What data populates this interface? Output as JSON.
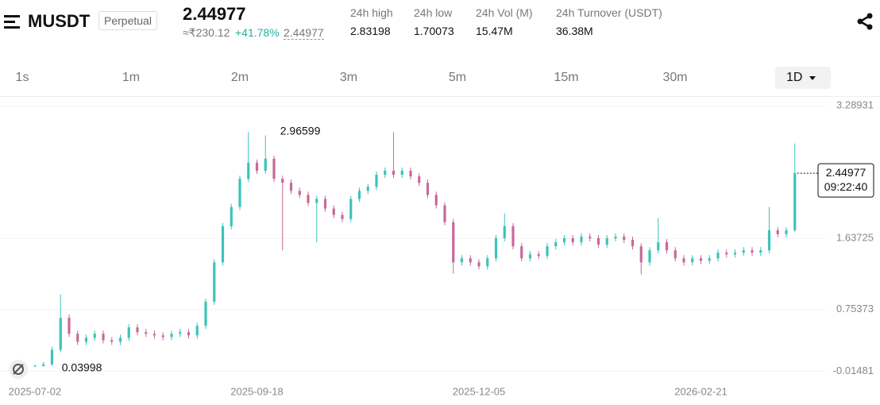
{
  "header": {
    "symbol": "MUSDT",
    "contract": "Perpetual",
    "price": "2.44977",
    "fiat_price": "≈₹230.12",
    "change": "+41.78%",
    "mark_price": "2.44977",
    "stats": [
      {
        "label": "24h high",
        "value": "2.83198"
      },
      {
        "label": "24h low",
        "value": "1.70073"
      },
      {
        "label": "24h Vol (M)",
        "value": "15.47M"
      },
      {
        "label": "24h Turnover (USDT)",
        "value": "36.38M"
      }
    ]
  },
  "intervals": {
    "options": [
      "1s",
      "1m",
      "2m",
      "3m",
      "5m",
      "15m",
      "30m",
      "1D"
    ],
    "selected_index": 7
  },
  "chart_data": {
    "type": "candlestick",
    "categories": [
      "2025-07-02",
      null,
      null,
      null,
      null,
      null,
      null,
      null,
      null,
      null,
      null,
      null,
      null,
      null,
      null,
      null,
      null,
      null,
      null,
      null,
      null,
      null,
      null,
      null,
      null,
      null,
      "2025-09-18",
      null,
      null,
      null,
      null,
      null,
      null,
      null,
      null,
      null,
      null,
      null,
      null,
      null,
      null,
      null,
      null,
      null,
      null,
      null,
      null,
      null,
      null,
      null,
      null,
      null,
      "2025-12-05",
      null,
      null,
      null,
      null,
      null,
      null,
      null,
      null,
      null,
      null,
      null,
      null,
      null,
      null,
      null,
      null,
      null,
      null,
      null,
      null,
      null,
      null,
      null,
      null,
      null,
      "2026-02-21",
      null,
      null,
      null,
      null,
      null,
      null,
      null,
      null,
      null,
      null,
      null
    ],
    "open": [
      0.04,
      0.05,
      0.07,
      0.25,
      0.65,
      0.45,
      0.35,
      0.4,
      0.45,
      0.37,
      0.35,
      0.4,
      0.53,
      0.47,
      0.45,
      0.43,
      0.41,
      0.45,
      0.47,
      0.43,
      0.55,
      0.85,
      1.34,
      1.79,
      2.03,
      2.38,
      2.58,
      2.48,
      2.63,
      2.38,
      2.33,
      2.23,
      2.18,
      2.08,
      2.13,
      2.01,
      1.93,
      1.88,
      2.13,
      2.23,
      2.28,
      2.43,
      2.48,
      2.43,
      2.48,
      2.41,
      2.33,
      2.18,
      2.05,
      1.84,
      1.34,
      1.39,
      1.34,
      1.29,
      1.39,
      1.64,
      1.79,
      1.54,
      1.39,
      1.44,
      1.42,
      1.54,
      1.59,
      1.64,
      1.59,
      1.66,
      1.64,
      1.56,
      1.64,
      1.66,
      1.62,
      1.54,
      1.34,
      1.49,
      1.59,
      1.49,
      1.39,
      1.34,
      1.39,
      1.36,
      1.39,
      1.46,
      1.44,
      1.46,
      1.49,
      1.46,
      1.49,
      1.74,
      1.69,
      1.74
    ],
    "high": [
      0.07,
      0.1,
      0.29,
      0.94,
      0.69,
      0.49,
      0.44,
      0.49,
      0.49,
      0.41,
      0.44,
      0.57,
      0.57,
      0.51,
      0.49,
      0.47,
      0.49,
      0.51,
      0.51,
      0.59,
      0.89,
      1.38,
      1.83,
      2.07,
      2.42,
      2.96599,
      2.62,
      2.92,
      2.67,
      2.42,
      2.37,
      2.27,
      2.22,
      2.17,
      2.17,
      2.05,
      1.97,
      2.17,
      2.27,
      2.32,
      2.47,
      2.52,
      2.96,
      2.52,
      2.52,
      2.45,
      2.37,
      2.22,
      2.09,
      1.88,
      1.43,
      1.43,
      1.38,
      1.43,
      1.68,
      1.95,
      1.83,
      1.58,
      1.48,
      1.48,
      1.58,
      1.63,
      1.68,
      1.68,
      1.7,
      1.7,
      1.68,
      1.68,
      1.7,
      1.7,
      1.66,
      1.58,
      1.53,
      1.89,
      1.63,
      1.53,
      1.43,
      1.43,
      1.43,
      1.43,
      1.5,
      1.5,
      1.5,
      1.53,
      1.53,
      1.53,
      2.03,
      1.78,
      1.78,
      2.82
    ],
    "low": [
      0.04,
      0.03998,
      0.05,
      0.22,
      0.41,
      0.31,
      0.31,
      0.36,
      0.33,
      0.31,
      0.31,
      0.36,
      0.43,
      0.41,
      0.39,
      0.37,
      0.37,
      0.41,
      0.39,
      0.39,
      0.51,
      0.81,
      1.3,
      1.75,
      1.99,
      2.34,
      2.44,
      2.44,
      2.34,
      1.49,
      2.19,
      2.14,
      2.04,
      1.59,
      1.97,
      1.89,
      1.84,
      1.84,
      2.09,
      2.19,
      2.24,
      2.39,
      2.39,
      2.39,
      2.37,
      2.29,
      2.14,
      2.01,
      1.8,
      1.2,
      1.3,
      1.3,
      1.25,
      1.25,
      1.35,
      1.6,
      1.5,
      1.35,
      1.35,
      1.38,
      1.38,
      1.5,
      1.55,
      1.55,
      1.55,
      1.6,
      1.52,
      1.52,
      1.6,
      1.58,
      1.5,
      1.19,
      1.3,
      1.45,
      1.45,
      1.35,
      1.3,
      1.3,
      1.32,
      1.32,
      1.35,
      1.4,
      1.4,
      1.42,
      1.42,
      1.42,
      1.45,
      1.65,
      1.65,
      1.72
    ],
    "close": [
      0.05,
      0.07,
      0.25,
      0.65,
      0.45,
      0.35,
      0.4,
      0.45,
      0.37,
      0.35,
      0.4,
      0.53,
      0.47,
      0.45,
      0.43,
      0.41,
      0.45,
      0.47,
      0.43,
      0.55,
      0.85,
      1.34,
      1.79,
      2.03,
      2.38,
      2.58,
      2.48,
      2.63,
      2.38,
      2.33,
      2.23,
      2.18,
      2.08,
      2.13,
      2.01,
      1.93,
      1.88,
      2.13,
      2.23,
      2.28,
      2.43,
      2.48,
      2.43,
      2.48,
      2.41,
      2.33,
      2.18,
      2.05,
      1.84,
      1.34,
      1.39,
      1.34,
      1.29,
      1.39,
      1.64,
      1.79,
      1.54,
      1.39,
      1.44,
      1.42,
      1.54,
      1.59,
      1.64,
      1.59,
      1.66,
      1.64,
      1.56,
      1.64,
      1.66,
      1.62,
      1.54,
      1.34,
      1.49,
      1.59,
      1.49,
      1.39,
      1.34,
      1.39,
      1.36,
      1.39,
      1.46,
      1.44,
      1.46,
      1.49,
      1.46,
      1.49,
      1.74,
      1.69,
      1.74,
      2.45
    ],
    "ylim": [
      -0.14,
      3.4
    ],
    "yticks": [
      3.28931,
      1.63725,
      0.75373,
      -0.01481
    ],
    "grid": true,
    "up_color": "#3cc3bb",
    "down_color": "#c9689a",
    "last_price": 2.44977,
    "countdown": "09:22:40"
  }
}
